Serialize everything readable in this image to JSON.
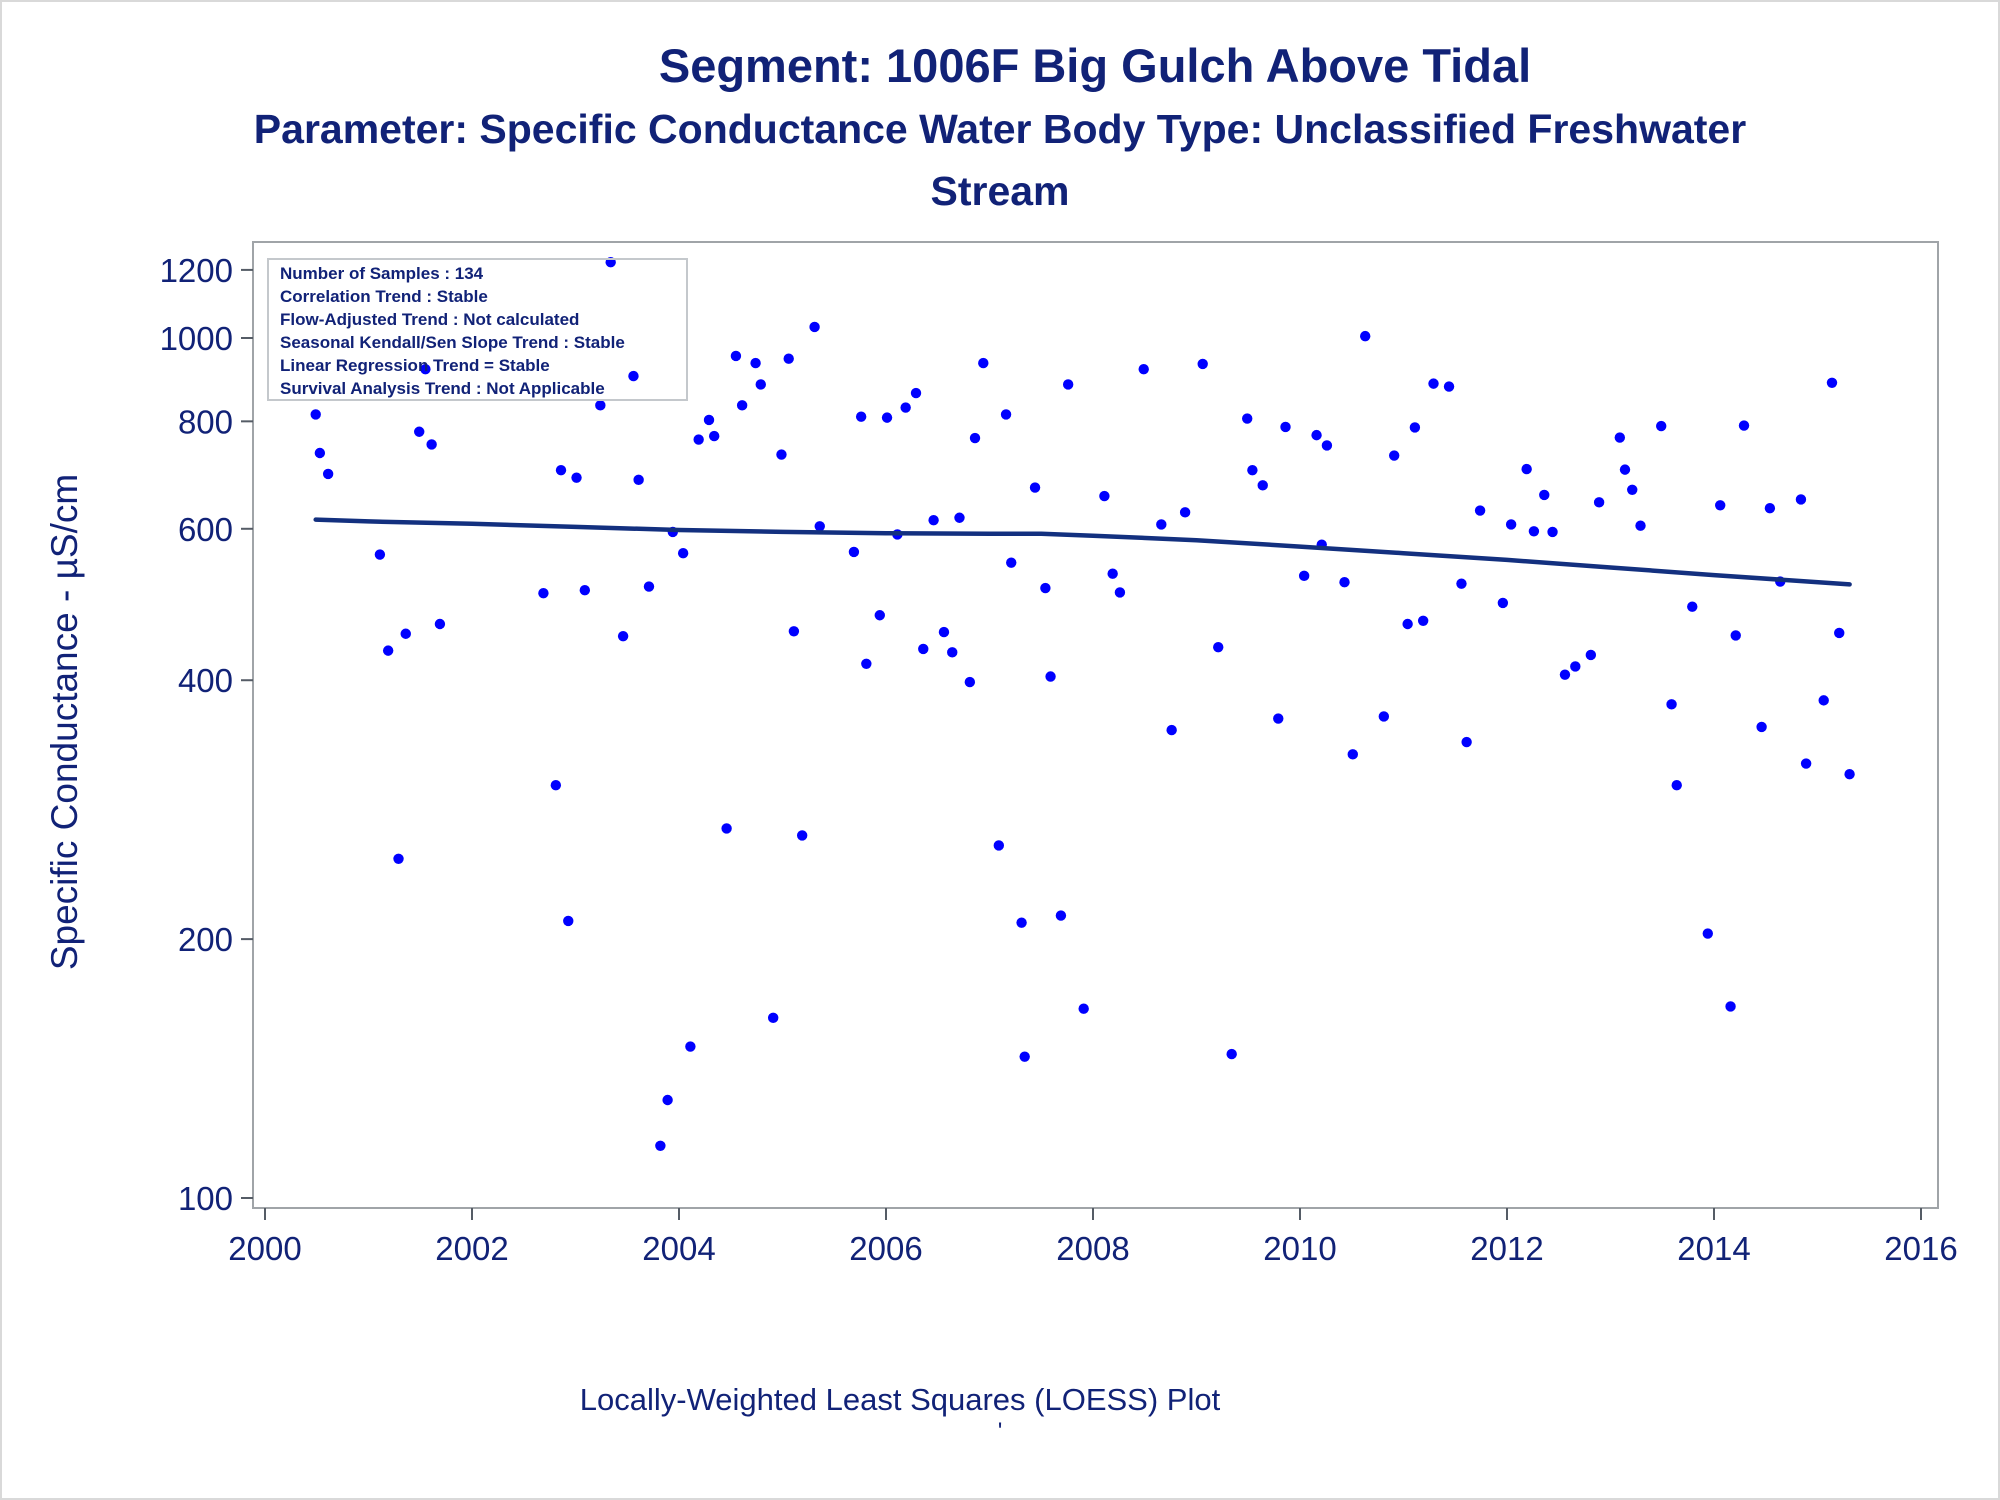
{
  "chart_data": {
    "type": "scatter",
    "title": "Segment: 1006F  Big Gulch Above Tidal",
    "subtitle_lines": [
      "Parameter: Specific Conductance   Water Body Type: Unclassified Freshwater",
      "Stream"
    ],
    "xlabel": "",
    "ylabel": "Specific Conductance -  µS/cm",
    "footnote": "Locally-Weighted Least Squares (LOESS) Plot",
    "footnote_mark": "'",
    "y_scale": "log",
    "xlim": [
      2000,
      2016
    ],
    "ylim": [
      100,
      1300
    ],
    "x_ticks": [
      "2000",
      "2002",
      "2004",
      "2006",
      "2008",
      "2010",
      "2012",
      "2014",
      "2016"
    ],
    "y_ticks": [
      "100",
      "200",
      "400",
      "600",
      "800",
      "1000",
      "1200"
    ],
    "stats_box": [
      "Number of Samples : 134",
      "Correlation Trend : Stable",
      "Flow-Adjusted Trend : Not calculated",
      "Seasonal Kendall/Sen Slope Trend : Stable",
      "Linear Regression Trend = Stable",
      "Survival Analysis Trend : Not Applicable"
    ],
    "point_color": "#0000ff",
    "trend_color": "#13307f",
    "axis_color": "#112277",
    "points": [
      [
        2000.49,
        815
      ],
      [
        2000.53,
        735
      ],
      [
        2000.61,
        695
      ],
      [
        2001.11,
        560
      ],
      [
        2001.19,
        433
      ],
      [
        2001.29,
        248
      ],
      [
        2001.36,
        453
      ],
      [
        2001.49,
        778
      ],
      [
        2001.55,
        920
      ],
      [
        2001.61,
        752
      ],
      [
        2001.69,
        465
      ],
      [
        2002.69,
        505
      ],
      [
        2002.81,
        302
      ],
      [
        2002.86,
        702
      ],
      [
        2002.93,
        210
      ],
      [
        2003.01,
        688
      ],
      [
        2003.09,
        509
      ],
      [
        2003.24,
        835
      ],
      [
        2003.34,
        1225
      ],
      [
        2003.46,
        450
      ],
      [
        2003.56,
        903
      ],
      [
        2003.61,
        684
      ],
      [
        2003.71,
        514
      ],
      [
        2003.82,
        115
      ],
      [
        2003.89,
        130
      ],
      [
        2003.94,
        595
      ],
      [
        2004.04,
        562
      ],
      [
        2004.11,
        150
      ],
      [
        2004.19,
        762
      ],
      [
        2004.29,
        803
      ],
      [
        2004.34,
        769
      ],
      [
        2004.46,
        269
      ],
      [
        2004.55,
        953
      ],
      [
        2004.61,
        835
      ],
      [
        2004.74,
        935
      ],
      [
        2004.79,
        883
      ],
      [
        2004.91,
        162
      ],
      [
        2004.99,
        732
      ],
      [
        2005.06,
        946
      ],
      [
        2005.11,
        456
      ],
      [
        2005.19,
        264
      ],
      [
        2005.31,
        1030
      ],
      [
        2005.36,
        604
      ],
      [
        2005.69,
        564
      ],
      [
        2005.76,
        810
      ],
      [
        2005.81,
        418
      ],
      [
        2005.94,
        476
      ],
      [
        2006.01,
        808
      ],
      [
        2006.11,
        591
      ],
      [
        2006.19,
        830
      ],
      [
        2006.29,
        863
      ],
      [
        2006.36,
        435
      ],
      [
        2006.46,
        614
      ],
      [
        2006.56,
        455
      ],
      [
        2006.64,
        431
      ],
      [
        2006.71,
        618
      ],
      [
        2006.81,
        398
      ],
      [
        2006.86,
        765
      ],
      [
        2006.94,
        935
      ],
      [
        2007.09,
        257
      ],
      [
        2007.16,
        815
      ],
      [
        2007.21,
        548
      ],
      [
        2007.31,
        209
      ],
      [
        2007.34,
        146
      ],
      [
        2007.44,
        670
      ],
      [
        2007.54,
        512
      ],
      [
        2007.59,
        404
      ],
      [
        2007.69,
        213
      ],
      [
        2007.76,
        883
      ],
      [
        2007.91,
        166
      ],
      [
        2008.11,
        655
      ],
      [
        2008.19,
        532
      ],
      [
        2008.26,
        506
      ],
      [
        2008.49,
        920
      ],
      [
        2008.66,
        607
      ],
      [
        2008.76,
        350
      ],
      [
        2008.89,
        627
      ],
      [
        2009.06,
        933
      ],
      [
        2009.21,
        437
      ],
      [
        2009.34,
        147
      ],
      [
        2009.49,
        806
      ],
      [
        2009.54,
        702
      ],
      [
        2009.64,
        674
      ],
      [
        2009.79,
        361
      ],
      [
        2009.86,
        788
      ],
      [
        2010.04,
        529
      ],
      [
        2010.16,
        771
      ],
      [
        2010.21,
        575
      ],
      [
        2010.26,
        750
      ],
      [
        2010.43,
        520
      ],
      [
        2010.51,
        328
      ],
      [
        2010.63,
        1005
      ],
      [
        2010.81,
        363
      ],
      [
        2010.91,
        730
      ],
      [
        2011.04,
        465
      ],
      [
        2011.11,
        787
      ],
      [
        2011.19,
        469
      ],
      [
        2011.29,
        885
      ],
      [
        2011.44,
        878
      ],
      [
        2011.56,
        518
      ],
      [
        2011.61,
        339
      ],
      [
        2011.74,
        630
      ],
      [
        2011.96,
        492
      ],
      [
        2012.04,
        607
      ],
      [
        2012.19,
        704
      ],
      [
        2012.26,
        596
      ],
      [
        2012.36,
        657
      ],
      [
        2012.44,
        595
      ],
      [
        2012.56,
        406
      ],
      [
        2012.66,
        415
      ],
      [
        2012.81,
        428
      ],
      [
        2012.89,
        644
      ],
      [
        2013.09,
        766
      ],
      [
        2013.14,
        703
      ],
      [
        2013.21,
        666
      ],
      [
        2013.29,
        605
      ],
      [
        2013.49,
        790
      ],
      [
        2013.59,
        375
      ],
      [
        2013.64,
        302
      ],
      [
        2013.79,
        487
      ],
      [
        2013.94,
        203
      ],
      [
        2014.06,
        639
      ],
      [
        2014.16,
        167
      ],
      [
        2014.21,
        451
      ],
      [
        2014.29,
        791
      ],
      [
        2014.46,
        353
      ],
      [
        2014.54,
        634
      ],
      [
        2014.64,
        521
      ],
      [
        2014.84,
        649
      ],
      [
        2014.89,
        320
      ],
      [
        2015.06,
        379
      ],
      [
        2015.14,
        887
      ],
      [
        2015.21,
        454
      ],
      [
        2015.31,
        311
      ]
    ],
    "trend_line": [
      [
        2000.49,
        615
      ],
      [
        2001.0,
        612
      ],
      [
        2002.0,
        608
      ],
      [
        2003.0,
        603
      ],
      [
        2004.0,
        598
      ],
      [
        2005.0,
        595
      ],
      [
        2006.0,
        593
      ],
      [
        2007.0,
        592
      ],
      [
        2007.5,
        592
      ],
      [
        2008.0,
        589
      ],
      [
        2009.0,
        582
      ],
      [
        2010.0,
        572
      ],
      [
        2011.0,
        562
      ],
      [
        2012.0,
        552
      ],
      [
        2013.0,
        541
      ],
      [
        2014.0,
        530
      ],
      [
        2015.31,
        517
      ]
    ]
  }
}
